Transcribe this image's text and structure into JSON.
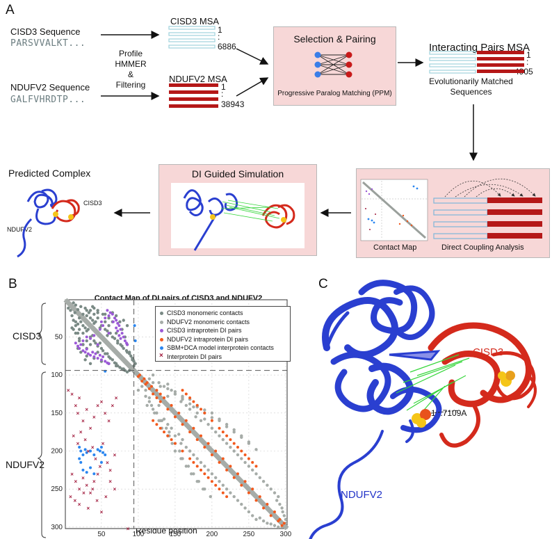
{
  "panels": {
    "a": "A",
    "b": "B",
    "c": "C"
  },
  "colors": {
    "pink": "#f7d7d7",
    "msa_light": "#9fd3dc",
    "msa_dark": "#b51818",
    "protein_blue": "#2233c8",
    "protein_red": "#d42a1c",
    "green_lines": "#36d63b"
  },
  "panelA": {
    "cisd3_seq_label": "CISD3 Sequence",
    "cisd3_seq": "PARSVVALKT...",
    "nduf_seq_label": "NDUFV2 Sequence",
    "nduf_seq": "GALFVHRDTP...",
    "profile_label": "Profile",
    "hmmer_label": "HMMER",
    "amp_label": "&",
    "filtering_label": "Filtering",
    "cisd3_msa_title": "CISD3 MSA",
    "cisd3_msa_first": "1",
    "cisd3_msa_dot": ":",
    "cisd3_msa_count": "6886",
    "nduf_msa_title": "NDUFV2 MSA",
    "nduf_msa_first": "1",
    "nduf_msa_dot": ":",
    "nduf_msa_count": "38943",
    "selection_title": "Selection & Pairing",
    "selection_caption": "Progressive Paralog Matching (PPM)",
    "pairs_title": "Interacting Pairs MSA",
    "pairs_first": "1",
    "pairs_dot": ":",
    "pairs_count": "4905",
    "pairs_caption_1": "Evolutionarily Matched",
    "pairs_caption_2": "Sequences",
    "contact_map_label": "Contact Map",
    "dca_label": "Direct Coupling Analysis",
    "di_sim_title": "DI Guided Simulation",
    "predicted_title": "Predicted Complex",
    "pred_cisd3": "CISD3",
    "pred_nduf": "NDUFV2"
  },
  "panelB": {
    "chart_title": "Contact Map of DI pairs of CISD3 and NDUFV2",
    "xlabel": "Residue position",
    "ylabel_top": "CISD3",
    "ylabel_bottom": "NDUFV2",
    "x_ticks": [
      "50",
      "100",
      "150",
      "200",
      "250",
      "300"
    ],
    "y_ticks": [
      "50",
      "100",
      "150",
      "200",
      "250",
      "300"
    ],
    "legend": [
      "CISD3 monomeric contacts",
      "NDUFV2 monomeric contacts",
      "CISD3 intraprotein DI pairs",
      "NDUFV2 intraprotein DI pairs",
      "SBM+DCA model interprotein contacts",
      "Interprotein DI pairs"
    ]
  },
  "panelC": {
    "label_cisd3": "CISD3",
    "label_nduf": "NDUFV2",
    "distance": "15.7109A"
  },
  "chart_data": {
    "type": "scatter",
    "title": "Contact Map of DI pairs of CISD3 and NDUFV2",
    "xlabel": "Residue position",
    "ylabel": "",
    "xlim": [
      1,
      302
    ],
    "ylim": [
      1,
      302
    ],
    "boundary": 94,
    "series": [
      {
        "name": "CISD3 monomeric contacts",
        "color": "#7a8a85",
        "x": [
          5,
          8,
          10,
          12,
          14,
          15,
          18,
          20,
          20,
          22,
          25,
          25,
          28,
          30,
          30,
          32,
          35,
          35,
          38,
          40,
          42,
          45,
          45,
          48,
          50,
          52,
          55,
          58,
          60,
          62,
          65,
          68,
          70,
          72,
          75,
          78,
          80,
          82,
          85,
          88,
          10,
          15,
          20,
          25,
          30,
          40,
          50,
          60,
          70,
          80,
          55,
          60,
          65,
          70,
          75,
          80,
          85,
          35,
          40,
          45
        ],
        "y": [
          12,
          15,
          22,
          28,
          18,
          30,
          33,
          25,
          40,
          30,
          35,
          45,
          38,
          42,
          55,
          40,
          50,
          60,
          48,
          55,
          58,
          62,
          70,
          58,
          65,
          68,
          72,
          72,
          76,
          78,
          80,
          84,
          85,
          88,
          90,
          92,
          93,
          94,
          96,
          94,
          38,
          45,
          52,
          60,
          65,
          78,
          82,
          85,
          88,
          92,
          20,
          25,
          18,
          22,
          30,
          28,
          35,
          15,
          12,
          18
        ]
      },
      {
        "name": "NDUFV2 monomeric contacts",
        "color": "#a6aca8",
        "x": [
          100,
          105,
          110,
          112,
          115,
          120,
          125,
          128,
          130,
          135,
          140,
          142,
          145,
          150,
          155,
          158,
          160,
          165,
          170,
          175,
          180,
          185,
          190,
          195,
          200,
          205,
          210,
          215,
          220,
          225,
          230,
          235,
          240,
          245,
          250,
          255,
          260,
          265,
          270,
          275,
          280,
          285,
          290,
          295,
          120,
          130,
          140,
          150,
          160,
          170,
          180,
          190,
          200,
          210,
          220,
          230,
          240,
          250,
          150,
          160,
          170,
          180,
          190,
          200,
          210,
          220,
          230,
          240,
          250,
          260
        ],
        "y": [
          120,
          115,
          128,
          140,
          135,
          145,
          150,
          140,
          160,
          158,
          165,
          175,
          170,
          180,
          178,
          190,
          185,
          195,
          200,
          205,
          210,
          215,
          220,
          225,
          230,
          235,
          240,
          245,
          250,
          255,
          260,
          265,
          270,
          275,
          280,
          285,
          290,
          288,
          292,
          295,
          296,
          298,
          300,
          300,
          110,
          115,
          118,
          122,
          128,
          132,
          140,
          146,
          150,
          158,
          165,
          172,
          180,
          188,
          125,
          132,
          138,
          142,
          150,
          156,
          160,
          168,
          175,
          182,
          190,
          198
        ]
      },
      {
        "name": "CISD3 intraprotein DI pairs",
        "color": "#9b59d6",
        "x": [
          15,
          18,
          20,
          22,
          25,
          28,
          30,
          32,
          35,
          38,
          40,
          42,
          45,
          48,
          50,
          52,
          55,
          58,
          60,
          25,
          30,
          35,
          40,
          45
        ],
        "y": [
          58,
          62,
          65,
          60,
          68,
          70,
          66,
          72,
          74,
          70,
          76,
          72,
          78,
          74,
          80,
          76,
          82,
          84,
          85,
          55,
          50,
          52,
          48,
          60
        ]
      },
      {
        "name": "NDUFV2 intraprotein DI pairs",
        "color": "#f2591d",
        "x": [
          100,
          105,
          110,
          115,
          120,
          125,
          130,
          140,
          150,
          160,
          170,
          180,
          190,
          200,
          210,
          220,
          230,
          240,
          250,
          260,
          270,
          280,
          290,
          295,
          150,
          160,
          170,
          175,
          180,
          185,
          190,
          195,
          200,
          205,
          210,
          215,
          220,
          120,
          125,
          130,
          135,
          140,
          145
        ],
        "y": [
          102,
          108,
          112,
          118,
          125,
          130,
          135,
          145,
          155,
          165,
          175,
          185,
          195,
          205,
          215,
          225,
          235,
          245,
          255,
          265,
          275,
          285,
          292,
          298,
          190,
          200,
          210,
          215,
          220,
          225,
          230,
          235,
          240,
          245,
          250,
          255,
          260,
          160,
          165,
          170,
          175,
          180,
          185
        ]
      },
      {
        "name": "SBM+DCA model interprotein contacts",
        "color": "#2a86f0",
        "x": [
          20,
          22,
          25,
          28,
          30,
          35,
          40,
          45,
          48,
          50,
          52,
          55,
          25,
          30,
          35,
          40,
          20,
          22,
          50,
          95,
          96,
          55
        ],
        "y": [
          195,
          200,
          205,
          198,
          202,
          200,
          205,
          198,
          200,
          195,
          202,
          205,
          225,
          228,
          222,
          230,
          210,
          215,
          215,
          35,
          55,
          95
        ]
      },
      {
        "name": "Interprotein DI pairs",
        "color": "#a0183a",
        "x": [
          5,
          10,
          15,
          18,
          20,
          25,
          30,
          35,
          40,
          45,
          50,
          55,
          60,
          65,
          70,
          12,
          18,
          22,
          28,
          32,
          38,
          42,
          48,
          52,
          58,
          62,
          68,
          10,
          15,
          20,
          25,
          30,
          35,
          40,
          45,
          8,
          14,
          20,
          26,
          32,
          38,
          44,
          50,
          56,
          62,
          68,
          86
        ],
        "y": [
          120,
          125,
          140,
          150,
          130,
          160,
          145,
          170,
          155,
          140,
          135,
          150,
          160,
          140,
          130,
          180,
          190,
          175,
          185,
          200,
          195,
          210,
          220,
          190,
          215,
          225,
          205,
          230,
          240,
          250,
          235,
          245,
          255,
          240,
          230,
          260,
          265,
          270,
          255,
          275,
          250,
          265,
          280,
          260,
          240,
          250,
          302
        ]
      }
    ],
    "legend_position": "top-right",
    "grid": true
  }
}
